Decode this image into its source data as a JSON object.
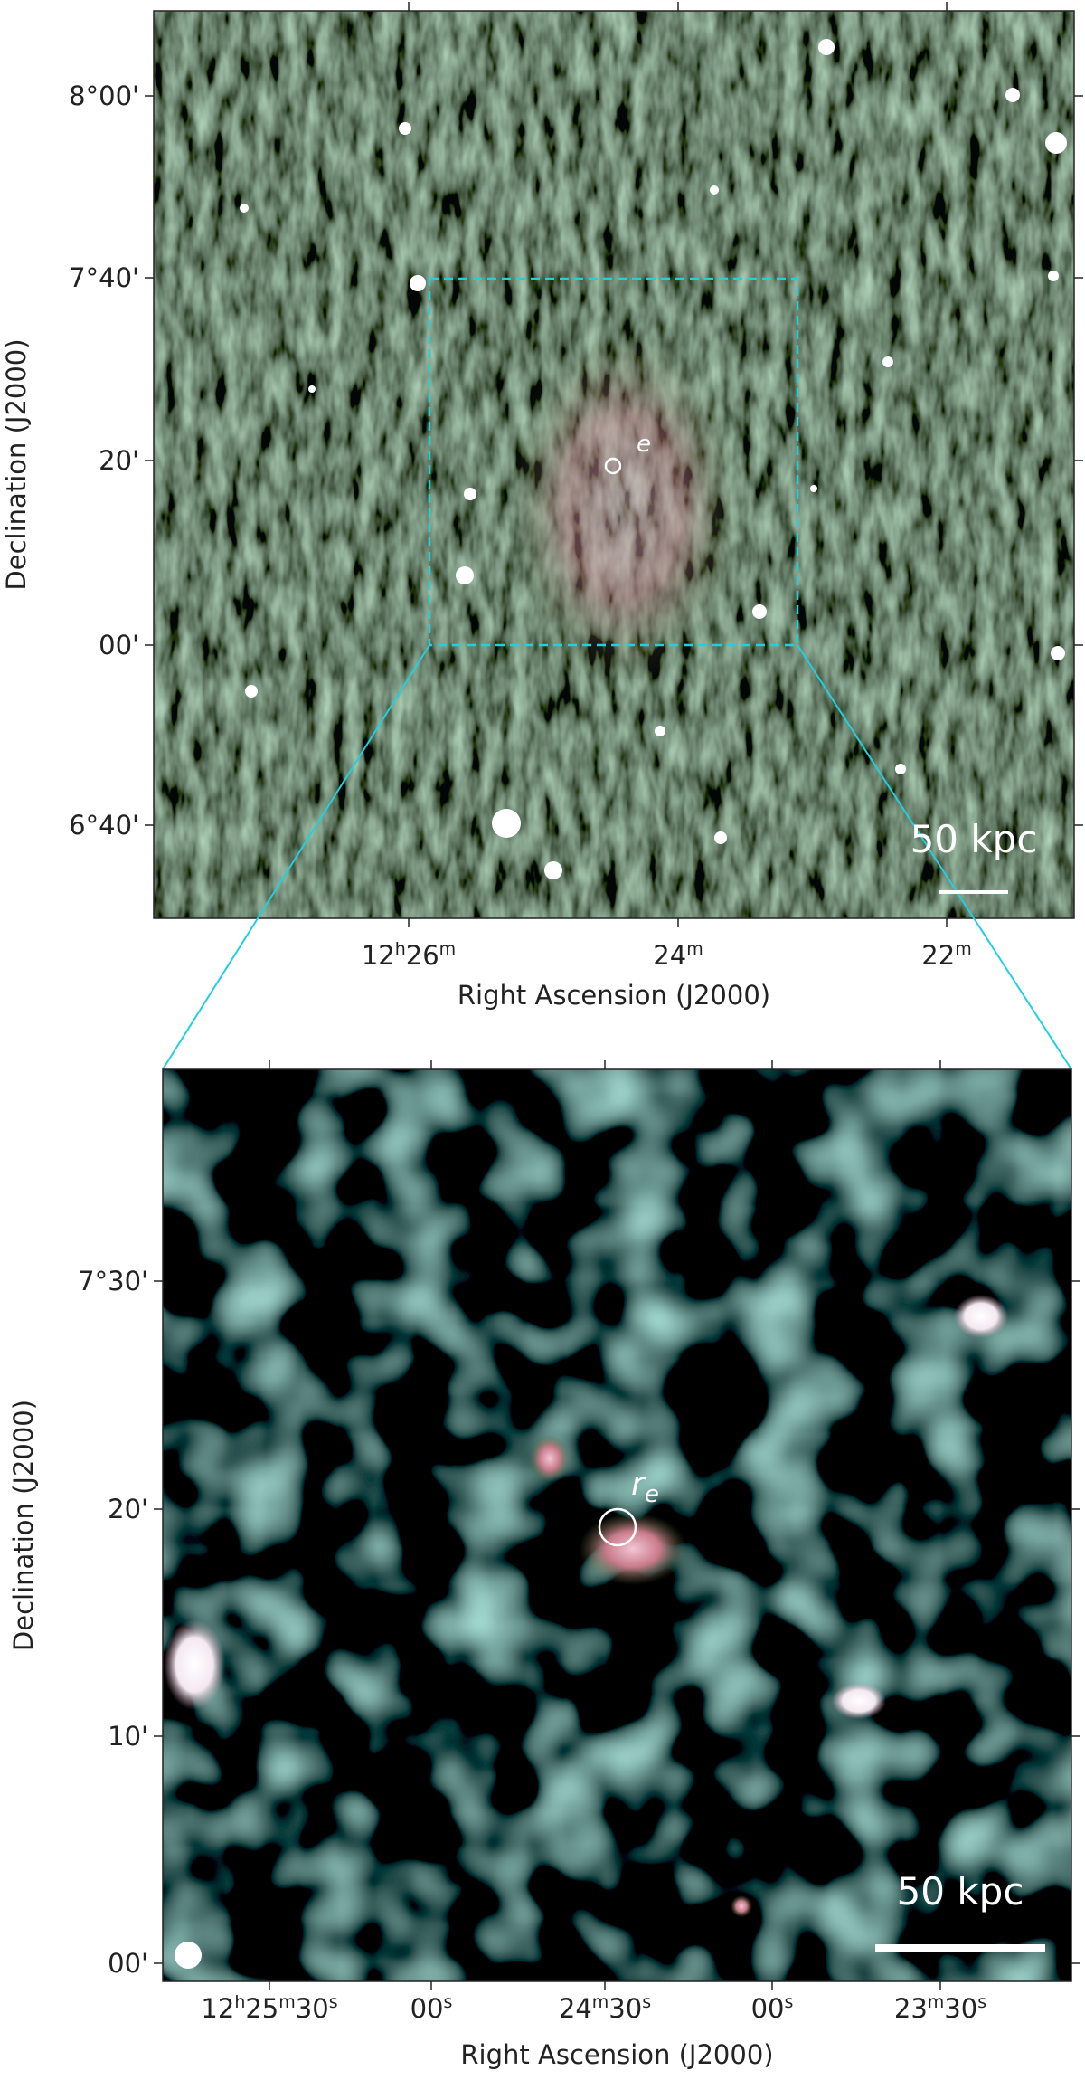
{
  "panels": [
    {
      "xlabel": "Right Ascension (J2000)",
      "ylabel": "Declination (J2000)",
      "xticks": [
        {
          "segments": [
            "12",
            "h",
            "26",
            "m"
          ]
        },
        {
          "segments": [
            "24",
            "m"
          ]
        },
        {
          "segments": [
            "22",
            "m"
          ]
        }
      ],
      "yticks": [
        "8°00'",
        "7°40'",
        "20'",
        "00'",
        "6°40'"
      ],
      "scalebar": "50 kpc",
      "marker": {
        "subscript": "e"
      }
    },
    {
      "xlabel": "Right Ascension (J2000)",
      "ylabel": "Declination (J2000)",
      "xticks": [
        {
          "segments": [
            "12",
            "h",
            "25",
            "m",
            "30",
            "s"
          ]
        },
        {
          "segments": [
            "00",
            "s"
          ]
        },
        {
          "segments": [
            "24",
            "m",
            "30",
            "s"
          ]
        },
        {
          "segments": [
            "00",
            "s"
          ]
        },
        {
          "segments": [
            "23",
            "m",
            "30",
            "s"
          ]
        }
      ],
      "yticks": [
        "7°30'",
        "20'",
        "10'",
        "00'"
      ],
      "scalebar": "50 kpc",
      "marker": {
        "symbol": "r",
        "subscript": "e"
      }
    }
  ]
}
